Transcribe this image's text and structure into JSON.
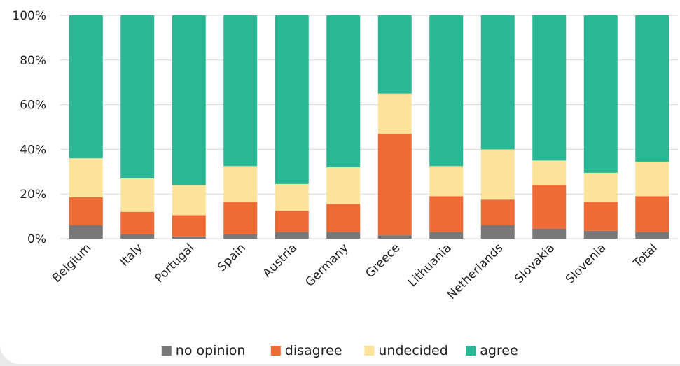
{
  "chart_data": {
    "type": "bar",
    "stacked": true,
    "categories": [
      "Belgium",
      "Italy",
      "Portugal",
      "Spain",
      "Austria",
      "Germany",
      "Greece",
      "Lithuania",
      "Netherlands",
      "Slovakia",
      "Slovenia",
      "Total"
    ],
    "series": [
      {
        "name": "no opinion",
        "color": "#787878",
        "values": [
          6,
          2,
          1,
          2,
          3,
          3,
          1.5,
          3,
          6,
          4.5,
          3.5,
          3
        ]
      },
      {
        "name": "disagree",
        "color": "#ef6a34",
        "values": [
          12.5,
          10,
          9.5,
          14.5,
          9.5,
          12.5,
          45.5,
          16,
          11.5,
          19.5,
          13,
          16
        ]
      },
      {
        "name": "undecided",
        "color": "#fde29a",
        "values": [
          17.5,
          15,
          13.5,
          16,
          12,
          16.5,
          18,
          13.5,
          22.5,
          11,
          13,
          15.5
        ]
      },
      {
        "name": "agree",
        "color": "#2ab796",
        "values": [
          64,
          73,
          76,
          67.5,
          75.5,
          68,
          35,
          67.5,
          60,
          65,
          70.5,
          65.5
        ]
      }
    ],
    "yticks": [
      "0%",
      "20%",
      "40%",
      "60%",
      "80%",
      "100%"
    ],
    "ylim": [
      0,
      100
    ],
    "grid": true,
    "legend": "bottom"
  }
}
